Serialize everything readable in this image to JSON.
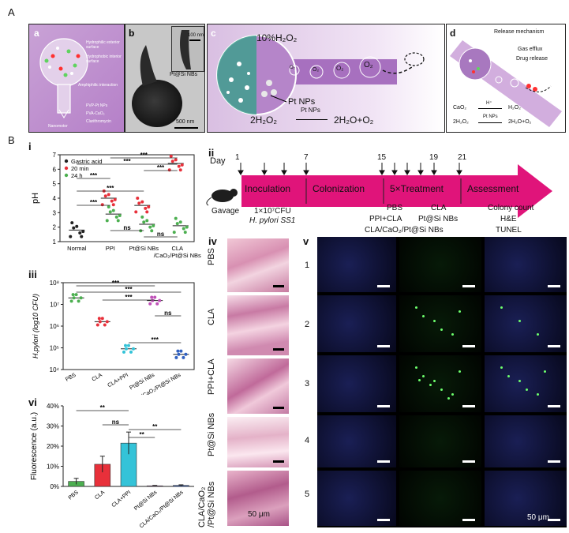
{
  "labels": {
    "A": "A",
    "B": "B",
    "a": "a",
    "b": "b",
    "c": "c",
    "d": "d",
    "i": "i",
    "ii": "ii",
    "iii": "iii",
    "iv": "iv",
    "v": "v",
    "vi": "vi"
  },
  "panel_a": {
    "legend": [
      "Hydrophilic exterior surface",
      "Hydrophobic interior surface",
      "Amphiphilic interaction",
      "PVP-Pt NPs",
      "PVA-CaO₂",
      "Clarithromycin",
      "Nanomotor"
    ]
  },
  "panel_b": {
    "scale_main": "500 nm",
    "scale_inset": "100 nm",
    "inset_label": "Pt@Si NBs"
  },
  "panel_c": {
    "h2o2": "10%H₂O₂",
    "pt": "Pt NPs",
    "o2": "O₂",
    "eq_left": "2H₂O₂",
    "eq_cat": "Pt NPs",
    "eq_right": "2H₂O+O₂"
  },
  "panel_d": {
    "title": "Release mechanism",
    "gas": "Gas efflux",
    "drug": "Drug release",
    "r1_left": "CaO₂",
    "r1_cat": "H⁺",
    "r1_right": "H₂O₂",
    "r2_left": "2H₂O₂",
    "r2_cat": "Pt NPs",
    "r2_right": "2H₂O+O₂"
  },
  "timeline": {
    "day_label": "Day",
    "days": [
      "1",
      "7",
      "15",
      "19",
      "21"
    ],
    "stages": [
      "Inoculation",
      "Colonization",
      "5×Treatment",
      "Assessment"
    ],
    "gavage": "Gavage",
    "inoc1": "1×10⁷CFU",
    "inoc2": "H. pylori  SS1",
    "treat": [
      "PBS",
      "CLA",
      "PPI+CLA",
      "Pt@Si NBs",
      "CLA/CaO₂/Pt@Si NBs"
    ],
    "assess": [
      "Colony count",
      "H&E",
      "TUNEL"
    ]
  },
  "chart_data": [
    {
      "type": "scatter",
      "title": "",
      "ylabel": "pH",
      "ylim": [
        1,
        7
      ],
      "yticks": [
        "1",
        "2",
        "3",
        "4",
        "5",
        "6",
        "7"
      ],
      "categories": [
        "Normal",
        "PPI",
        "Pt@Si NBs",
        "CLA/CaO₂/Pt@Si NBs"
      ],
      "series": [
        {
          "name": "Gastric acid",
          "color": "#222222",
          "values": [
            1.8,
            null,
            null,
            null
          ]
        },
        {
          "name": "20 min",
          "color": "#e8303a",
          "values": [
            null,
            4.0,
            3.5,
            6.4
          ]
        },
        {
          "name": "24 h",
          "color": "#4caf50",
          "values": [
            null,
            2.9,
            2.2,
            2.1
          ]
        }
      ],
      "significance": [
        "***",
        "***",
        "***",
        "***",
        "***",
        "***",
        "ns",
        "ns"
      ]
    },
    {
      "type": "scatter",
      "ylabel": "H.pylori (log10 CFU)",
      "yscale": "log",
      "ylim": [
        10000,
        100000000
      ],
      "yticks": [
        "10⁴",
        "10⁵",
        "10⁶",
        "10⁷",
        "10⁸"
      ],
      "categories": [
        "PBS",
        "CLA",
        "CLA+PPI",
        "Pt@Si NBs",
        "CLA/CaO₂/Pt@Si NBs"
      ],
      "colors": [
        "#4caf50",
        "#e8303a",
        "#34c3d8",
        "#c050b8",
        "#3060c0"
      ],
      "values": [
        20000000,
        1600000,
        90000,
        15000000,
        50000
      ],
      "significance": [
        "***",
        "***",
        "***",
        "ns",
        "***"
      ]
    },
    {
      "type": "bar",
      "ylabel": "Fluorescence (a.u.)",
      "ylim": [
        0,
        40
      ],
      "yticks": [
        "0%",
        "10%",
        "20%",
        "30%",
        "40%"
      ],
      "categories": [
        "PBS",
        "CLA",
        "CLA+PPI",
        "Pt@Si NBs",
        "CLA/CaO₂/Pt@Si NBs"
      ],
      "colors": [
        "#4caf50",
        "#e8303a",
        "#34c3d8",
        "#c050b8",
        "#3060c0"
      ],
      "values": [
        2.5,
        11,
        21.5,
        0.3,
        0.5
      ],
      "errors": [
        1.5,
        4,
        5.5,
        0.2,
        0.3
      ],
      "significance": [
        "**",
        "ns",
        "**",
        "**"
      ]
    }
  ],
  "panel_iv": {
    "rows": [
      "PBS",
      "CLA",
      "PPI+CLA",
      "Pt@Si NBs",
      "CLA/CaO₂ /Pt@Si NBs"
    ],
    "scale": "50 μm"
  },
  "panel_v": {
    "rows": [
      "1",
      "2",
      "3",
      "4",
      "5"
    ],
    "scale": "50 μm"
  }
}
